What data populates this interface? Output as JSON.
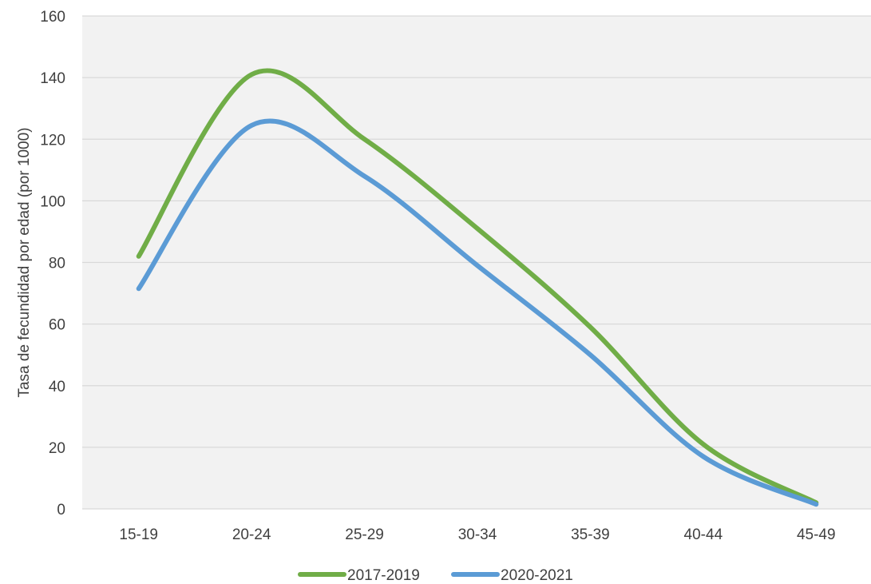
{
  "chart_data": {
    "type": "line",
    "title": "",
    "xlabel": "",
    "ylabel": "Tasa de fecundidad por edad (por 1000)",
    "categories": [
      "15-19",
      "20-24",
      "25-29",
      "30-34",
      "35-39",
      "40-44",
      "45-49"
    ],
    "ylim": [
      0,
      160
    ],
    "yticks": [
      0,
      20,
      40,
      60,
      80,
      100,
      120,
      140,
      160
    ],
    "grid": true,
    "smooth": true,
    "legend_position": "bottom",
    "series": [
      {
        "name": "2017-2019",
        "color": "#70ad47",
        "values": [
          82,
          141,
          120,
          91,
          59,
          21,
          2
        ]
      },
      {
        "name": "2020-2021",
        "color": "#5b9bd5",
        "values": [
          71.5,
          124.5,
          108,
          79,
          50,
          17,
          1.5
        ]
      }
    ],
    "plot_background": "#f2f2f2",
    "gridline_color": "#d9d9d9"
  }
}
